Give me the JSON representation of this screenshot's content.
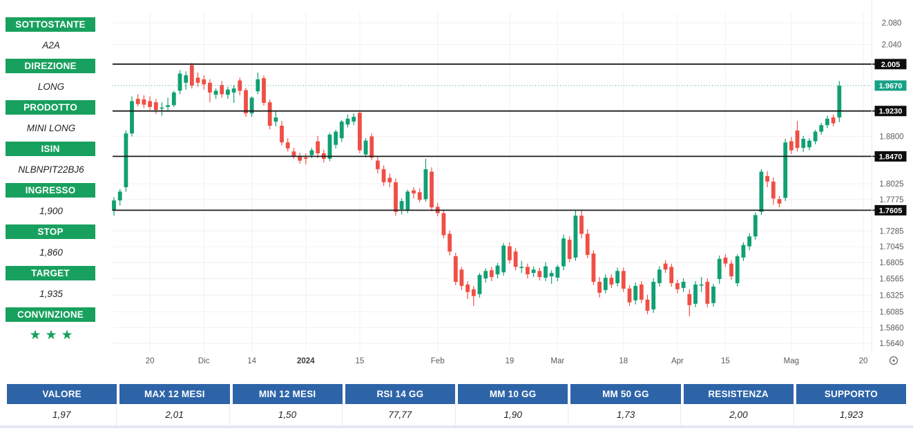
{
  "sidebar": {
    "accent_color": "#18a05e",
    "items": [
      {
        "label": "SOTTOSTANTE",
        "value": "A2A"
      },
      {
        "label": "DIREZIONE",
        "value": "LONG"
      },
      {
        "label": "PRODOTTO",
        "value": "MINI LONG"
      },
      {
        "label": "ISIN",
        "value": "NLBNPIT22BJ6"
      },
      {
        "label": "INGRESSO",
        "value": "1,900"
      },
      {
        "label": "STOP",
        "value": "1,860"
      },
      {
        "label": "TARGET",
        "value": "1,935"
      },
      {
        "label": "CONVINZIONE",
        "value": "★★★"
      }
    ],
    "star_count": 3
  },
  "table": {
    "header_bg": "#2d64a8",
    "columns": [
      {
        "header": "VALORE",
        "value": "1,97"
      },
      {
        "header": "MAX 12 MESI",
        "value": "2,01"
      },
      {
        "header": "MIN 12 MESI",
        "value": "1,50"
      },
      {
        "header": "RSI 14 GG",
        "value": "77,77"
      },
      {
        "header": "MM 10 GG",
        "value": "1,90"
      },
      {
        "header": "MM 50 GG",
        "value": "1,73"
      },
      {
        "header": "RESISTENZA",
        "value": "2,00"
      },
      {
        "header": "SUPPORTO",
        "value": "1,923"
      }
    ]
  },
  "icons": {
    "time_axis_settings": "circle-with-dot"
  },
  "chart_data": {
    "type": "candlestick",
    "title": "",
    "scale": "log",
    "ylim": [
      1.556,
      2.095
    ],
    "grid": true,
    "colors": {
      "up": "#10a073",
      "down": "#ef4f46",
      "current_label_bg": "#16a186",
      "level_label_bg": "#0d0d0d"
    },
    "x_ticks": [
      {
        "index": 6,
        "label": "20",
        "bold": false
      },
      {
        "index": 15,
        "label": "Dic",
        "bold": false
      },
      {
        "index": 23,
        "label": "14",
        "bold": false
      },
      {
        "index": 32,
        "label": "2024",
        "bold": true
      },
      {
        "index": 41,
        "label": "15",
        "bold": false
      },
      {
        "index": 54,
        "label": "Feb",
        "bold": false
      },
      {
        "index": 66,
        "label": "19",
        "bold": false
      },
      {
        "index": 74,
        "label": "Mar",
        "bold": false
      },
      {
        "index": 85,
        "label": "18",
        "bold": false
      },
      {
        "index": 94,
        "label": "Apr",
        "bold": false
      },
      {
        "index": 102,
        "label": "15",
        "bold": false
      },
      {
        "index": 113,
        "label": "Mag",
        "bold": false
      },
      {
        "index": 125,
        "label": "20",
        "bold": false
      }
    ],
    "y_ticks": [
      {
        "price": 2.08,
        "label": "2.080"
      },
      {
        "price": 2.04,
        "label": "2.040"
      },
      {
        "price": 1.88,
        "label": "1.8800"
      },
      {
        "price": 1.8025,
        "label": "1.8025"
      },
      {
        "price": 1.7775,
        "label": "1.7775"
      },
      {
        "price": 1.7285,
        "label": "1.7285"
      },
      {
        "price": 1.7045,
        "label": "1.7045"
      },
      {
        "price": 1.6805,
        "label": "1.6805"
      },
      {
        "price": 1.6565,
        "label": "1.6565"
      },
      {
        "price": 1.6325,
        "label": "1.6325"
      },
      {
        "price": 1.6085,
        "label": "1.6085"
      },
      {
        "price": 1.586,
        "label": "1.5860"
      },
      {
        "price": 1.564,
        "label": "1.5640"
      }
    ],
    "level_lines": [
      {
        "price": 2.005,
        "label": "2.005"
      },
      {
        "price": 1.923,
        "label": "1.9230"
      },
      {
        "price": 1.847,
        "label": "1.8470"
      },
      {
        "price": 1.7605,
        "label": "1.7605"
      }
    ],
    "current_price": {
      "price": 1.967,
      "label": "1.9670"
    },
    "candles": [
      [
        1.76,
        1.781,
        1.752,
        1.776
      ],
      [
        1.776,
        1.794,
        1.768,
        1.79
      ],
      [
        1.797,
        1.89,
        1.79,
        1.885
      ],
      [
        1.885,
        1.948,
        1.88,
        1.94
      ],
      [
        1.944,
        1.952,
        1.931,
        1.935
      ],
      [
        1.943,
        1.95,
        1.928,
        1.934
      ],
      [
        1.94,
        1.948,
        1.925,
        1.93
      ],
      [
        1.938,
        1.944,
        1.918,
        1.925
      ],
      [
        1.928,
        1.938,
        1.915,
        1.929
      ],
      [
        1.93,
        1.946,
        1.922,
        1.933
      ],
      [
        1.933,
        1.958,
        1.93,
        1.955
      ],
      [
        1.958,
        1.994,
        1.952,
        1.988
      ],
      [
        1.972,
        1.992,
        1.96,
        1.985
      ],
      [
        2.003,
        2.007,
        1.962,
        1.967
      ],
      [
        1.981,
        1.99,
        1.965,
        1.972
      ],
      [
        1.978,
        1.985,
        1.96,
        1.969
      ],
      [
        1.972,
        1.978,
        1.938,
        1.955
      ],
      [
        1.951,
        1.962,
        1.944,
        1.958
      ],
      [
        1.968,
        1.975,
        1.946,
        1.952
      ],
      [
        1.951,
        1.965,
        1.944,
        1.96
      ],
      [
        1.955,
        1.968,
        1.937,
        1.962
      ],
      [
        1.976,
        1.981,
        1.95,
        1.958
      ],
      [
        1.959,
        1.963,
        1.913,
        1.919
      ],
      [
        1.919,
        1.948,
        1.913,
        1.946
      ],
      [
        1.957,
        1.99,
        1.952,
        1.978
      ],
      [
        1.98,
        1.985,
        1.932,
        1.937
      ],
      [
        1.938,
        1.943,
        1.892,
        1.898
      ],
      [
        1.905,
        1.922,
        1.897,
        1.912
      ],
      [
        1.898,
        1.906,
        1.865,
        1.87
      ],
      [
        1.87,
        1.877,
        1.855,
        1.86
      ],
      [
        1.855,
        1.861,
        1.843,
        1.848
      ],
      [
        1.848,
        1.853,
        1.835,
        1.84
      ],
      [
        1.845,
        1.852,
        1.834,
        1.843
      ],
      [
        1.849,
        1.861,
        1.844,
        1.857
      ],
      [
        1.872,
        1.881,
        1.844,
        1.852
      ],
      [
        1.852,
        1.858,
        1.837,
        1.843
      ],
      [
        1.843,
        1.886,
        1.839,
        1.883
      ],
      [
        1.866,
        1.891,
        1.86,
        1.888
      ],
      [
        1.877,
        1.908,
        1.871,
        1.905
      ],
      [
        1.9,
        1.917,
        1.895,
        1.91
      ],
      [
        1.905,
        1.919,
        1.899,
        1.913
      ],
      [
        1.92,
        1.924,
        1.852,
        1.857
      ],
      [
        1.85,
        1.877,
        1.845,
        1.873
      ],
      [
        1.88,
        1.885,
        1.841,
        1.845
      ],
      [
        1.84,
        1.847,
        1.819,
        1.826
      ],
      [
        1.826,
        1.832,
        1.799,
        1.805
      ],
      [
        1.812,
        1.819,
        1.797,
        1.805
      ],
      [
        1.805,
        1.811,
        1.752,
        1.758
      ],
      [
        1.762,
        1.779,
        1.754,
        1.775
      ],
      [
        1.76,
        1.793,
        1.756,
        1.79
      ],
      [
        1.792,
        1.797,
        1.779,
        1.787
      ],
      [
        1.789,
        1.795,
        1.773,
        1.777
      ],
      [
        1.778,
        1.843,
        1.774,
        1.826
      ],
      [
        1.822,
        1.829,
        1.759,
        1.765
      ],
      [
        1.766,
        1.772,
        1.751,
        1.756
      ],
      [
        1.756,
        1.761,
        1.717,
        1.722
      ],
      [
        1.724,
        1.729,
        1.691,
        1.697
      ],
      [
        1.69,
        1.695,
        1.647,
        1.652
      ],
      [
        1.67,
        1.674,
        1.64,
        1.646
      ],
      [
        1.648,
        1.653,
        1.627,
        1.637
      ],
      [
        1.641,
        1.646,
        1.617,
        1.631
      ],
      [
        1.634,
        1.665,
        1.629,
        1.662
      ],
      [
        1.657,
        1.672,
        1.651,
        1.668
      ],
      [
        1.669,
        1.674,
        1.653,
        1.659
      ],
      [
        1.663,
        1.68,
        1.657,
        1.676
      ],
      [
        1.666,
        1.71,
        1.661,
        1.706
      ],
      [
        1.705,
        1.711,
        1.679,
        1.684
      ],
      [
        1.697,
        1.702,
        1.669,
        1.674
      ],
      [
        1.674,
        1.683,
        1.665,
        1.674
      ],
      [
        1.674,
        1.679,
        1.657,
        1.663
      ],
      [
        1.665,
        1.675,
        1.659,
        1.67
      ],
      [
        1.668,
        1.673,
        1.654,
        1.659
      ],
      [
        1.658,
        1.681,
        1.653,
        1.675
      ],
      [
        1.66,
        1.669,
        1.649,
        1.665
      ],
      [
        1.658,
        1.677,
        1.653,
        1.674
      ],
      [
        1.675,
        1.723,
        1.669,
        1.717
      ],
      [
        1.715,
        1.72,
        1.681,
        1.686
      ],
      [
        1.688,
        1.761,
        1.683,
        1.752
      ],
      [
        1.752,
        1.76,
        1.717,
        1.724
      ],
      [
        1.724,
        1.731,
        1.687,
        1.692
      ],
      [
        1.694,
        1.699,
        1.647,
        1.652
      ],
      [
        1.652,
        1.659,
        1.629,
        1.636
      ],
      [
        1.64,
        1.663,
        1.635,
        1.658
      ],
      [
        1.658,
        1.663,
        1.643,
        1.648
      ],
      [
        1.65,
        1.673,
        1.645,
        1.668
      ],
      [
        1.668,
        1.673,
        1.637,
        1.642
      ],
      [
        1.642,
        1.647,
        1.617,
        1.622
      ],
      [
        1.625,
        1.651,
        1.619,
        1.646
      ],
      [
        1.648,
        1.653,
        1.621,
        1.626
      ],
      [
        1.626,
        1.633,
        1.605,
        1.61
      ],
      [
        1.612,
        1.657,
        1.607,
        1.652
      ],
      [
        1.65,
        1.675,
        1.645,
        1.67
      ],
      [
        1.679,
        1.684,
        1.665,
        1.67
      ],
      [
        1.674,
        1.679,
        1.645,
        1.65
      ],
      [
        1.65,
        1.655,
        1.635,
        1.641
      ],
      [
        1.643,
        1.657,
        1.637,
        1.652
      ],
      [
        1.634,
        1.641,
        1.602,
        1.618
      ],
      [
        1.62,
        1.653,
        1.615,
        1.648
      ],
      [
        1.648,
        1.659,
        1.637,
        1.648
      ],
      [
        1.652,
        1.657,
        1.615,
        1.62
      ],
      [
        1.621,
        1.649,
        1.616,
        1.645
      ],
      [
        1.656,
        1.691,
        1.649,
        1.686
      ],
      [
        1.688,
        1.693,
        1.674,
        1.679
      ],
      [
        1.679,
        1.684,
        1.655,
        1.66
      ],
      [
        1.65,
        1.693,
        1.645,
        1.69
      ],
      [
        1.688,
        1.711,
        1.683,
        1.707
      ],
      [
        1.705,
        1.725,
        1.699,
        1.72
      ],
      [
        1.72,
        1.757,
        1.715,
        1.753
      ],
      [
        1.758,
        1.826,
        1.753,
        1.822
      ],
      [
        1.815,
        1.823,
        1.797,
        1.806
      ],
      [
        1.806,
        1.813,
        1.769,
        1.779
      ],
      [
        1.778,
        1.783,
        1.765,
        1.771
      ],
      [
        1.78,
        1.876,
        1.775,
        1.87
      ],
      [
        1.872,
        1.879,
        1.851,
        1.857
      ],
      [
        1.89,
        1.906,
        1.855,
        1.861
      ],
      [
        1.861,
        1.881,
        1.854,
        1.876
      ],
      [
        1.862,
        1.877,
        1.857,
        1.873
      ],
      [
        1.872,
        1.891,
        1.867,
        1.888
      ],
      [
        1.888,
        1.903,
        1.883,
        1.899
      ],
      [
        1.899,
        1.915,
        1.894,
        1.91
      ],
      [
        1.912,
        1.917,
        1.897,
        1.902
      ],
      [
        1.912,
        1.975,
        1.904,
        1.967
      ]
    ]
  }
}
